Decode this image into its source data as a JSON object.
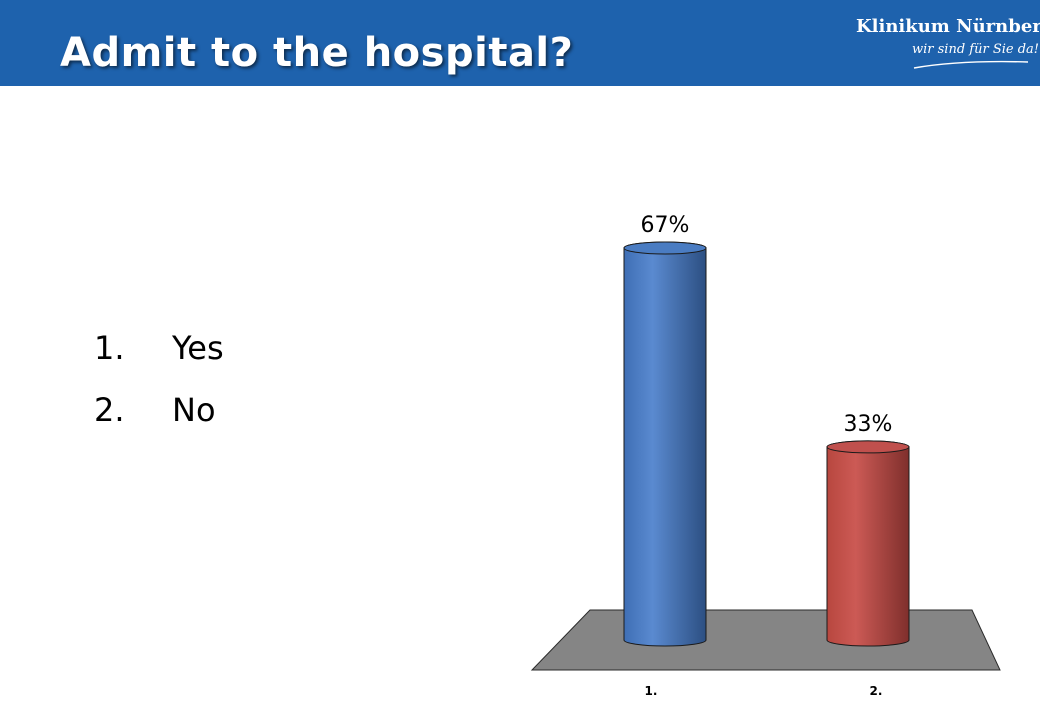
{
  "header": {
    "title": "Admit to the hospital?",
    "background_color": "#1e62ad"
  },
  "logo": {
    "name": "Klinikum Nürnberg",
    "slogan": "wir sind für Sie da!"
  },
  "options": [
    {
      "number": "1.",
      "label": "Yes"
    },
    {
      "number": "2.",
      "label": "No"
    }
  ],
  "chart_data": {
    "type": "bar",
    "style": "3d-cylinder",
    "categories": [
      "1.",
      "2."
    ],
    "values": [
      67,
      33
    ],
    "value_labels": [
      "67%",
      "33%"
    ],
    "colors": [
      "#4a7cc2",
      "#c0504d"
    ],
    "floor_color": "#858585",
    "title": "",
    "xlabel": "",
    "ylabel": "",
    "ylim": [
      0,
      67
    ],
    "grid": false,
    "legend": "none"
  }
}
